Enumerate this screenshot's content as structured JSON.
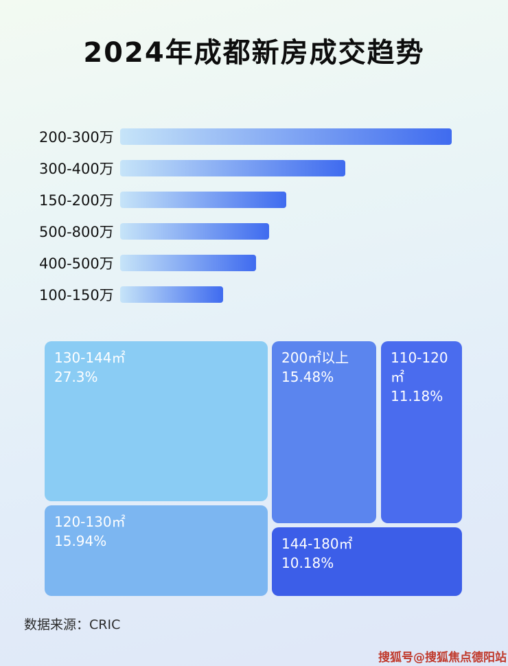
{
  "page": {
    "title": "2024年成都新房成交趋势",
    "source_label": "数据来源：CRIC",
    "watermark": "搜狐号@搜狐焦点德阳站"
  },
  "colors": {
    "bar_gradient_start": "#c6e4f8",
    "bar_gradient_end": "#3f6bef",
    "watermark_color": "#c0392b",
    "title_color": "#0d0d0d"
  },
  "chart_data": [
    {
      "type": "bar",
      "orientation": "horizontal",
      "title": "2024年成都新房成交趋势",
      "categories": [
        "200-300万",
        "300-400万",
        "150-200万",
        "500-800万",
        "400-500万",
        "100-150万"
      ],
      "values": [
        100,
        68,
        50,
        45,
        41,
        31
      ],
      "value_note": "relative bar lengths, percent of longest bar (no axis shown)",
      "xlabel": "",
      "ylabel": "",
      "grid": false,
      "legend": "none"
    },
    {
      "type": "treemap",
      "title": "",
      "items": [
        {
          "label": "130-144㎡",
          "value": 27.3,
          "value_label": "27.3%",
          "color": "#8accf4"
        },
        {
          "label": "120-130㎡",
          "value": 15.94,
          "value_label": "15.94%",
          "color": "#7cb6f1"
        },
        {
          "label": "200㎡以上",
          "value": 15.48,
          "value_label": "15.48%",
          "color": "#5b85ee"
        },
        {
          "label": "110-120㎡",
          "value": 11.18,
          "value_label": "11.18%",
          "color": "#4a6cee"
        },
        {
          "label": "144-180㎡",
          "value": 10.18,
          "value_label": "10.18%",
          "color": "#3c5ee8"
        }
      ]
    }
  ]
}
